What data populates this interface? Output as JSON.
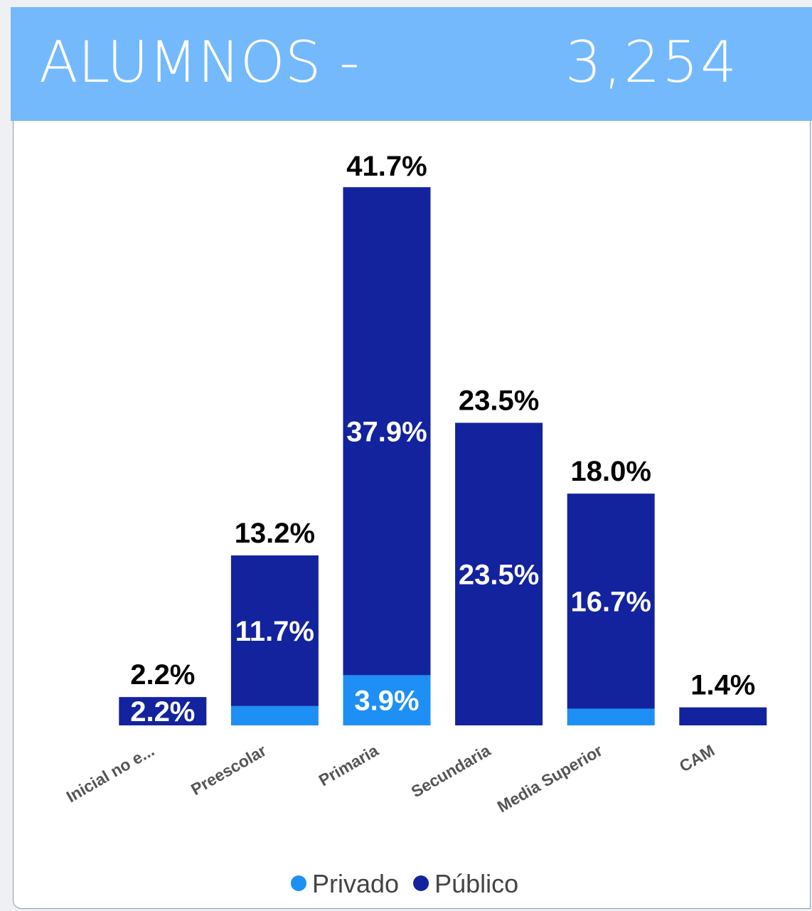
{
  "header": {
    "title": "ALUMNOS -",
    "value": "3,254"
  },
  "chart_data": {
    "type": "stacked_bar",
    "categories": [
      "Inicial no e...",
      "Preescolar",
      "Primaria",
      "Secundaria",
      "Media Superior",
      "CAM"
    ],
    "series": [
      {
        "name": "Privado",
        "color": "#1e8ff5",
        "values": [
          0,
          1.5,
          3.9,
          0,
          1.3,
          0
        ],
        "value_labels": [
          null,
          null,
          "3.9%",
          null,
          null,
          null
        ]
      },
      {
        "name": "Público",
        "color": "#13239e",
        "values": [
          2.2,
          11.7,
          37.9,
          23.5,
          16.7,
          1.4
        ],
        "value_labels": [
          "2.2%",
          "11.7%",
          "37.9%",
          "23.5%",
          "16.7%",
          null
        ]
      }
    ],
    "totals": [
      2.2,
      13.2,
      41.7,
      23.5,
      18.0,
      1.4
    ],
    "total_labels": [
      "2.2%",
      "13.2%",
      "41.7%",
      "23.5%",
      "18.0%",
      "1.4%"
    ],
    "legend": "bottom"
  }
}
